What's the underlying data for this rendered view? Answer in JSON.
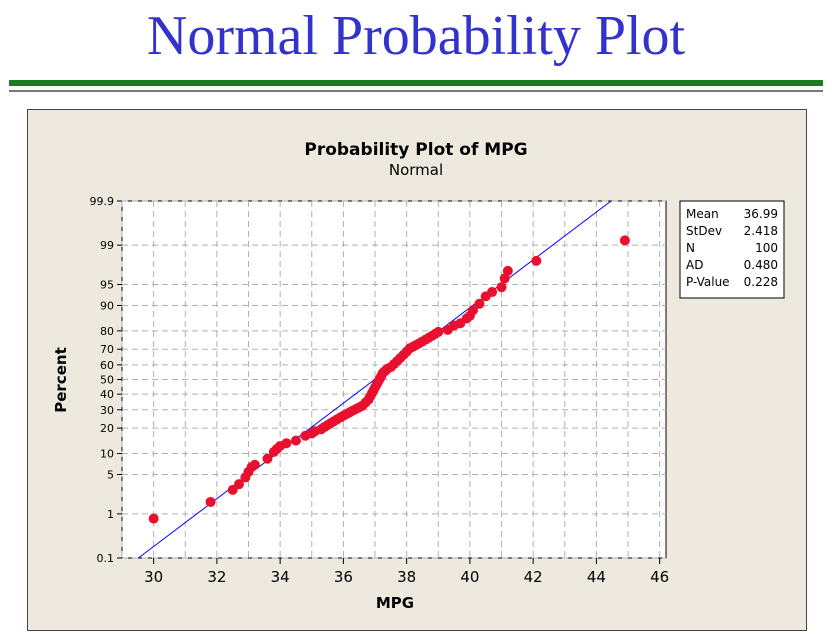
{
  "page": {
    "title": "Normal Probability Plot"
  },
  "chart_data": {
    "type": "scatter",
    "title": "Probability Plot of MPG",
    "subtitle": "Normal",
    "xlabel": "MPG",
    "ylabel": "Percent",
    "xlim": [
      29,
      46.2
    ],
    "ylim": [
      0.1,
      99.9
    ],
    "y_scale": "normal-probability",
    "x_ticks": [
      30,
      32,
      34,
      36,
      38,
      40,
      42,
      44,
      46
    ],
    "y_ticks": [
      0.1,
      1,
      5,
      10,
      20,
      30,
      40,
      50,
      60,
      70,
      80,
      90,
      95,
      99,
      99.9
    ],
    "y_tick_labels": [
      "0.1",
      "1",
      "5",
      "10",
      "20",
      "30",
      "40",
      "50",
      "60",
      "70",
      "80",
      "90",
      "95",
      "99",
      "99.9"
    ],
    "grid": true,
    "fit_line": {
      "type": "normal-cdf",
      "mean": 36.99,
      "stdev": 2.418
    },
    "series": [
      {
        "x": [
          30.0,
          31.8,
          32.5,
          32.7,
          32.9,
          33.0,
          33.1,
          33.2,
          33.6,
          33.8,
          33.9,
          34.0,
          34.2,
          34.5,
          34.8,
          35.0,
          35.1,
          35.3,
          35.4,
          35.5,
          35.6,
          35.7,
          35.8,
          35.9,
          36.0,
          36.1,
          36.2,
          36.3,
          36.4,
          36.5,
          36.6,
          36.7,
          36.8,
          36.85,
          36.9,
          36.95,
          37.0,
          37.05,
          37.1,
          37.15,
          37.2,
          37.25,
          37.3,
          37.35,
          37.4,
          37.5,
          37.6,
          37.7,
          37.8,
          37.9,
          38.0,
          38.1,
          38.2,
          38.3,
          38.4,
          38.5,
          38.6,
          38.7,
          38.8,
          38.9,
          39.0,
          39.3,
          39.5,
          39.7,
          39.9,
          40.0,
          40.1,
          40.3,
          40.5,
          40.7,
          41.0,
          41.1,
          41.2,
          42.1,
          44.9
        ],
        "y": [
          0.8,
          1.7,
          2.8,
          3.5,
          4.5,
          5.5,
          6.5,
          7.0,
          8.5,
          10.5,
          11.5,
          12.5,
          13.5,
          14.5,
          16.5,
          17.5,
          18.5,
          19.5,
          20.5,
          21.5,
          22.5,
          23.5,
          24.5,
          25.5,
          26.5,
          27.5,
          28.5,
          29.5,
          30.5,
          31.5,
          32.5,
          34.5,
          36.5,
          38.5,
          40.5,
          42.5,
          44.5,
          46.5,
          48.5,
          50.5,
          52.5,
          54.5,
          55.5,
          56.5,
          57.5,
          58.5,
          60.5,
          62.5,
          64.5,
          66.5,
          68.5,
          70.5,
          71.5,
          72.5,
          73.5,
          74.5,
          75.5,
          76.5,
          77.5,
          78.5,
          79.5,
          80.5,
          82.5,
          83.5,
          85.5,
          86.5,
          88.5,
          90.5,
          92.5,
          93.5,
          94.5,
          96.0,
          97.0,
          98.0,
          99.2
        ]
      }
    ],
    "legend_box": {
      "rows": [
        {
          "label": "Mean",
          "value": "36.99"
        },
        {
          "label": "StDev",
          "value": "2.418"
        },
        {
          "label": "N",
          "value": "100"
        },
        {
          "label": "AD",
          "value": "0.480"
        },
        {
          "label": "P-Value",
          "value": "0.228"
        }
      ]
    },
    "colors": {
      "points": "#e8102e",
      "fit_line": "#0000ff",
      "grid": "#b0b0b0",
      "panel": "#ede9df",
      "title": "#3333cc"
    }
  }
}
